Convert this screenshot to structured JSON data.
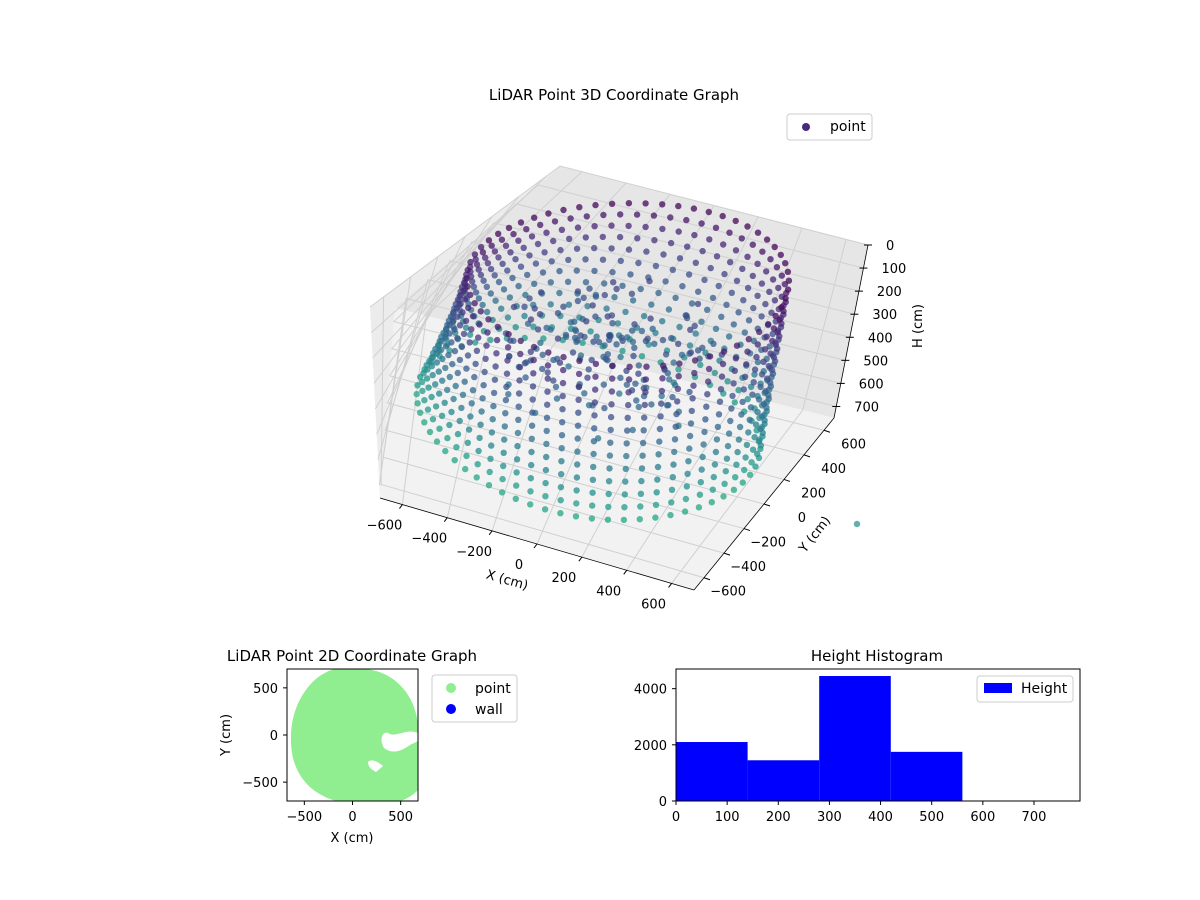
{
  "chart_data": [
    {
      "type": "scatter",
      "title": "LiDAR Point 3D Coordinate Graph",
      "xlabel": "X (cm)",
      "ylabel": "Y (cm)",
      "zlabel": "H (cm)",
      "xlim": [
        -700,
        700
      ],
      "ylim": [
        -700,
        700
      ],
      "zlim": [
        0,
        750
      ],
      "z_inverted": true,
      "x_ticks": [
        "−600",
        "−400",
        "−200",
        "0",
        "200",
        "400",
        "600"
      ],
      "y_ticks": [
        "−600",
        "−400",
        "−200",
        "0",
        "200",
        "400",
        "600"
      ],
      "z_ticks": [
        "0",
        "100",
        "200",
        "300",
        "400",
        "500",
        "600",
        "700"
      ],
      "legend": [
        {
          "label": "point",
          "color": "#472c7a"
        }
      ],
      "legend_position": "upper-right",
      "colormap": "viridis",
      "description_ring": {
        "radius_cm": 620,
        "height_range": [
          0,
          730
        ]
      },
      "grid": true
    },
    {
      "type": "scatter",
      "title": "LiDAR Point 2D Coordinate Graph",
      "xlabel": "X (cm)",
      "ylabel": "Y (cm)",
      "xlim": [
        -680,
        680
      ],
      "ylim": [
        -700,
        700
      ],
      "x_ticks": [
        "−500",
        "0",
        "500"
      ],
      "y_ticks": [
        "−500",
        "0",
        "500"
      ],
      "series": [
        {
          "name": "point",
          "color": "#90ee90"
        },
        {
          "name": "wall",
          "color": "#0000ff"
        }
      ],
      "legend_position": "outside-right"
    },
    {
      "type": "bar",
      "title": "Height Histogram",
      "bin_edges": [
        0,
        140,
        280,
        420,
        560
      ],
      "values": [
        2100,
        1450,
        4450,
        1750
      ],
      "xlim": [
        0,
        790
      ],
      "ylim": [
        0,
        4700
      ],
      "x_ticks": [
        "0",
        "100",
        "200",
        "300",
        "400",
        "500",
        "600",
        "700"
      ],
      "y_ticks": [
        "0",
        "2000",
        "4000"
      ],
      "legend": [
        {
          "label": "Height",
          "color": "#0000ff"
        }
      ],
      "legend_position": "upper-right",
      "bar_color": "#0000ff"
    }
  ]
}
